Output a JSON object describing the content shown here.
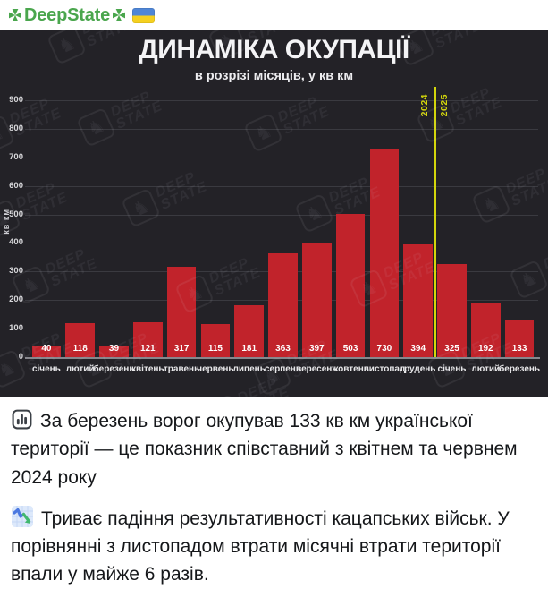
{
  "header": {
    "channel": "DeepState"
  },
  "chart_data": {
    "type": "bar",
    "title": "ДИНАМІКА ОКУПАЦІЇ",
    "subtitle": "в розрізі місяців, у кв км",
    "ylabel": "кв км",
    "categories": [
      "січень",
      "лютий",
      "березень",
      "квітень",
      "травень",
      "червень",
      "липень",
      "серпень",
      "вересень",
      "жовтень",
      "листопад",
      "грудень",
      "січень",
      "лютий",
      "березень"
    ],
    "values": [
      40,
      118,
      39,
      121,
      317,
      115,
      181,
      363,
      397,
      503,
      730,
      394,
      325,
      192,
      133
    ],
    "ylim": [
      0,
      900
    ],
    "yticks": [
      0,
      100,
      200,
      300,
      400,
      500,
      600,
      700,
      800,
      900
    ],
    "grid": true,
    "legend": "none",
    "bar_color": "#c1232b",
    "background_color": "#232227",
    "year_divider": {
      "after_index": 11,
      "labels": [
        "2024",
        "2025"
      ],
      "color": "#d3d60b"
    },
    "watermark": {
      "line1": "DEEP",
      "line2": "STATE"
    }
  },
  "captions": [
    {
      "text": "За березень ворог окупував 133 кв км української території — це показник співставний з квітнем та червнем 2024 року"
    },
    {
      "text": "Триває падіння результативності кацапських військ. У порівнянні з листопадом втрати місячні втрати території впали у майже 6 разів."
    }
  ]
}
